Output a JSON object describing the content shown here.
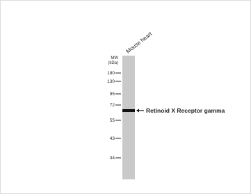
{
  "lane_label": "Mouse heart",
  "mw_label": [
    "MW",
    "(kDa)"
  ],
  "markers": [
    180,
    130,
    95,
    72,
    55,
    43,
    34
  ],
  "band_label": "Retinoid X Receptor gamma"
}
